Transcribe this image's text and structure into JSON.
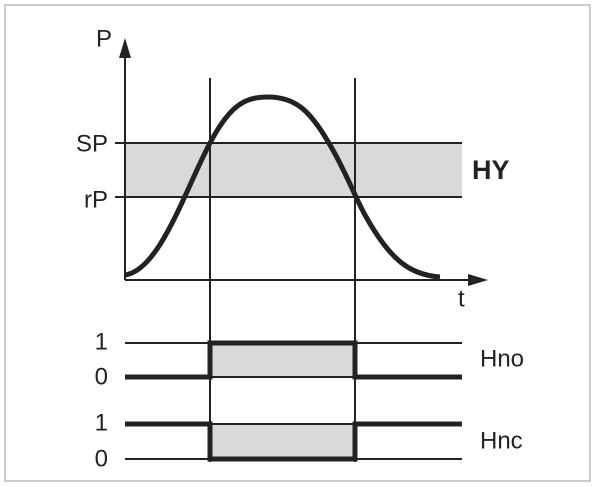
{
  "axes": {
    "y_label": "P",
    "x_label": "t"
  },
  "levels": {
    "sp": "SP",
    "rp": "rP",
    "hysteresis": "HY"
  },
  "outputs": [
    {
      "high": "1",
      "low": "0",
      "name": "Hno"
    },
    {
      "high": "1",
      "low": "0",
      "name": "Hnc"
    }
  ]
}
